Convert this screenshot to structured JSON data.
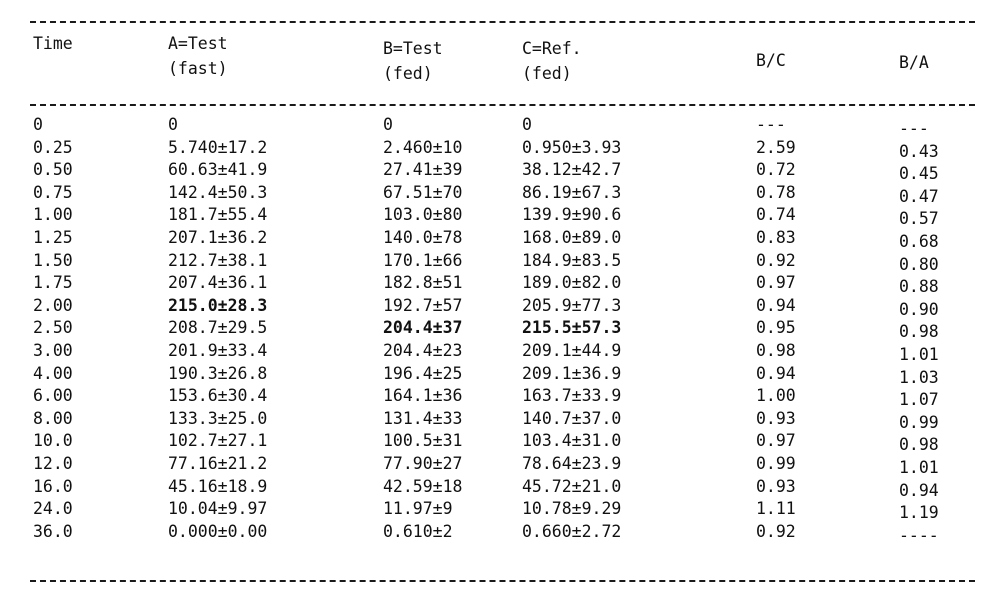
{
  "table": {
    "headers": {
      "time": [
        "Time"
      ],
      "a": [
        "A=Test",
        "(fast)"
      ],
      "b": [
        "B=Test",
        "(fed)"
      ],
      "c": [
        "C=Ref.",
        "(fed)"
      ],
      "bc": [
        "B/C"
      ],
      "ba": [
        "B/A"
      ]
    },
    "rows": [
      {
        "time": "0",
        "a": "0",
        "b": "0",
        "c": "0",
        "bc": "---",
        "ba": "---"
      },
      {
        "time": "0.25",
        "a": "5.740±17.2",
        "b": "2.460±10",
        "c": "0.950±3.93",
        "bc": "2.59",
        "ba": "0.43"
      },
      {
        "time": "0.50",
        "a": "60.63±41.9",
        "b": "27.41±39",
        "c": "38.12±42.7",
        "bc": "0.72",
        "ba": "0.45"
      },
      {
        "time": "0.75",
        "a": "142.4±50.3",
        "b": "67.51±70",
        "c": "86.19±67.3",
        "bc": "0.78",
        "ba": "0.47"
      },
      {
        "time": "1.00",
        "a": "181.7±55.4",
        "b": "103.0±80",
        "c": "139.9±90.6",
        "bc": "0.74",
        "ba": "0.57"
      },
      {
        "time": "1.25",
        "a": "207.1±36.2",
        "b": "140.0±78",
        "c": "168.0±89.0",
        "bc": "0.83",
        "ba": "0.68"
      },
      {
        "time": "1.50",
        "a": "212.7±38.1",
        "b": "170.1±66",
        "c": "184.9±83.5",
        "bc": "0.92",
        "ba": "0.80"
      },
      {
        "time": "1.75",
        "a": "207.4±36.1",
        "b": "182.8±51",
        "c": "189.0±82.0",
        "bc": "0.97",
        "ba": "0.88"
      },
      {
        "time": "2.00",
        "a": "215.0±28.3",
        "b": "192.7±57",
        "c": "205.9±77.3",
        "bc": "0.94",
        "ba": "0.90"
      },
      {
        "time": "2.50",
        "a": "208.7±29.5",
        "b": "204.4±37",
        "c": "215.5±57.3",
        "bc": "0.95",
        "ba": "0.98"
      },
      {
        "time": "3.00",
        "a": "201.9±33.4",
        "b": "204.4±23",
        "c": "209.1±44.9",
        "bc": "0.98",
        "ba": "1.01"
      },
      {
        "time": "4.00",
        "a": "190.3±26.8",
        "b": "196.4±25",
        "c": "209.1±36.9",
        "bc": "0.94",
        "ba": "1.03"
      },
      {
        "time": "6.00",
        "a": "153.6±30.4",
        "b": "164.1±36",
        "c": "163.7±33.9",
        "bc": "1.00",
        "ba": "1.07"
      },
      {
        "time": "8.00",
        "a": "133.3±25.0",
        "b": "131.4±33",
        "c": "140.7±37.0",
        "bc": "0.93",
        "ba": "0.99"
      },
      {
        "time": "10.0",
        "a": "102.7±27.1",
        "b": "100.5±31",
        "c": "103.4±31.0",
        "bc": "0.97",
        "ba": "0.98"
      },
      {
        "time": "12.0",
        "a": "77.16±21.2",
        "b": "77.90±27",
        "c": "78.64±23.9",
        "bc": "0.99",
        "ba": "1.01"
      },
      {
        "time": "16.0",
        "a": "45.16±18.9",
        "b": "42.59±18",
        "c": "45.72±21.0",
        "bc": "0.93",
        "ba": "0.94"
      },
      {
        "time": "24.0",
        "a": "10.04±9.97",
        "b": "11.97±9",
        "c": "10.78±9.29",
        "bc": "1.11",
        "ba": "1.19"
      },
      {
        "time": "36.0",
        "a": "0.000±0.00",
        "b": "0.610±2",
        "c": "0.660±2.72",
        "bc": "0.92",
        "ba": "----"
      }
    ]
  }
}
